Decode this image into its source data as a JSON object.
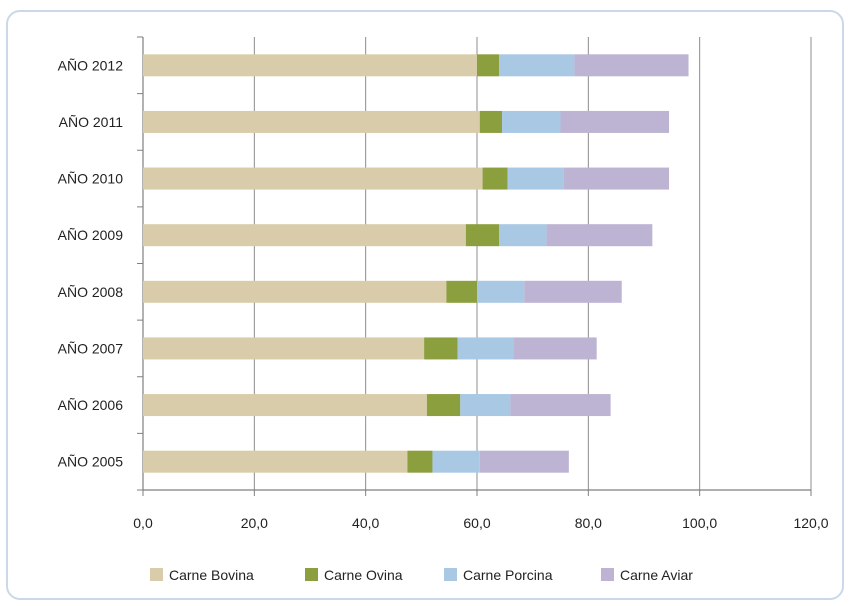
{
  "chart_data": {
    "type": "bar",
    "orientation": "horizontal",
    "stacked": true,
    "title": "",
    "xlabel": "",
    "ylabel": "",
    "categories": [
      "AÑO 2012",
      "AÑO 2011",
      "AÑO 2010",
      "AÑO 2009",
      "AÑO 2008",
      "AÑO 2007",
      "AÑO 2006",
      "AÑO 2005"
    ],
    "series": [
      {
        "name": "Carne Bovina",
        "color": "#d9ccaa",
        "values": [
          60.0,
          60.5,
          61.0,
          58.0,
          54.5,
          50.5,
          51.0,
          47.5
        ]
      },
      {
        "name": "Carne Ovina",
        "color": "#8c9f3e",
        "values": [
          4.0,
          4.0,
          4.5,
          6.0,
          5.5,
          6.0,
          6.0,
          4.5
        ]
      },
      {
        "name": "Carne Porcina",
        "color": "#a9c8e4",
        "values": [
          13.5,
          10.5,
          10.0,
          8.5,
          8.5,
          10.0,
          9.0,
          8.5
        ]
      },
      {
        "name": "Carne Aviar",
        "color": "#bdb3d3",
        "values": [
          20.5,
          19.5,
          19.0,
          19.0,
          17.5,
          15.0,
          18.0,
          16.0
        ]
      }
    ],
    "xlim": [
      0,
      120
    ],
    "x_ticks": [
      "0,0",
      "20,0",
      "40,0",
      "60,0",
      "80,0",
      "100,0",
      "120,0"
    ],
    "x_tick_values": [
      0,
      20,
      40,
      60,
      80,
      100,
      120
    ],
    "grid": true,
    "legend_position": "bottom"
  }
}
